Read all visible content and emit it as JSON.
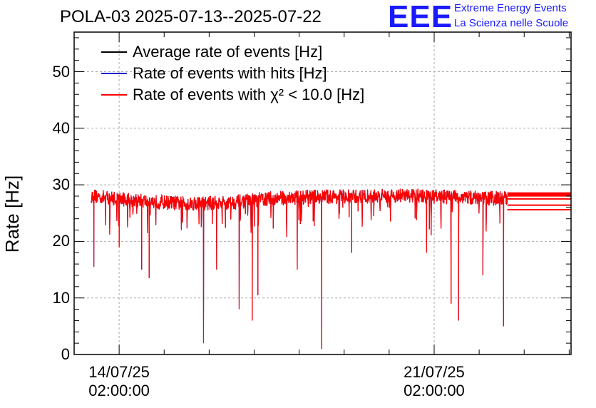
{
  "header": {
    "title": "POLA-03 2025-07-13--2025-07-22",
    "logo_text": "EEE",
    "logo_line1": "Extreme Energy Events",
    "logo_line2": "La Scienza nelle Scuole",
    "logo_color": "#1a1aff"
  },
  "chart_data": {
    "type": "line",
    "ylabel": "Rate [Hz]",
    "ylim": [
      0,
      57
    ],
    "yticks": [
      "0",
      "10",
      "20",
      "30",
      "40",
      "50"
    ],
    "xticks": [
      {
        "date": "14/07/25",
        "time": "02:00:00"
      },
      {
        "date": "21/07/25",
        "time": "02:00:00"
      }
    ],
    "x_range": [
      "2025-07-13T02:00:00",
      "2025-07-24T03:00:00"
    ],
    "grid": true,
    "legend_placement": "top-left",
    "series": [
      {
        "name": "Average rate of events [Hz]",
        "color": "#000000"
      },
      {
        "name": "Rate of events with hits [Hz]",
        "color": "#0000cc"
      },
      {
        "name": "Rate of events with χ² < 10.0 [Hz]",
        "color": "#ff0000"
      }
    ],
    "data_span": [
      "2025-07-13T11:00:00",
      "2025-07-22T17:00:00"
    ],
    "baseline_samples": [
      {
        "t": "2025-07-13T12:00:00",
        "y": 28.0
      },
      {
        "t": "2025-07-14T12:00:00",
        "y": 27.2
      },
      {
        "t": "2025-07-15T12:00:00",
        "y": 26.7
      },
      {
        "t": "2025-07-16T12:00:00",
        "y": 26.8
      },
      {
        "t": "2025-07-17T12:00:00",
        "y": 27.6
      },
      {
        "t": "2025-07-18T12:00:00",
        "y": 27.9
      },
      {
        "t": "2025-07-19T12:00:00",
        "y": 27.9
      },
      {
        "t": "2025-07-20T12:00:00",
        "y": 28.1
      },
      {
        "t": "2025-07-21T12:00:00",
        "y": 27.8
      },
      {
        "t": "2025-07-22T12:00:00",
        "y": 27.6
      }
    ],
    "dips": [
      {
        "t": "2025-07-13T12:30:00",
        "y": 15.5
      },
      {
        "t": "2025-07-14T02:00:00",
        "y": 19.0
      },
      {
        "t": "2025-07-14T14:00:00",
        "y": 15.0
      },
      {
        "t": "2025-07-14T18:00:00",
        "y": 13.5
      },
      {
        "t": "2025-07-15T23:00:00",
        "y": 2.0
      },
      {
        "t": "2025-07-16T06:00:00",
        "y": 15.0
      },
      {
        "t": "2025-07-16T18:00:00",
        "y": 8.0
      },
      {
        "t": "2025-07-17T01:00:00",
        "y": 6.0
      },
      {
        "t": "2025-07-17T04:00:00",
        "y": 10.5
      },
      {
        "t": "2025-07-18T01:00:00",
        "y": 15.0
      },
      {
        "t": "2025-07-18T14:00:00",
        "y": 1.0
      },
      {
        "t": "2025-07-19T06:00:00",
        "y": 18.0
      },
      {
        "t": "2025-07-20T22:00:00",
        "y": 18.0
      },
      {
        "t": "2025-07-21T11:00:00",
        "y": 9.0
      },
      {
        "t": "2025-07-21T15:00:00",
        "y": 6.0
      },
      {
        "t": "2025-07-22T04:00:00",
        "y": 14.0
      },
      {
        "t": "2025-07-22T15:00:00",
        "y": 5.0
      }
    ],
    "tail_levels": [
      28.3,
      27.5,
      26.4,
      25.6
    ]
  }
}
